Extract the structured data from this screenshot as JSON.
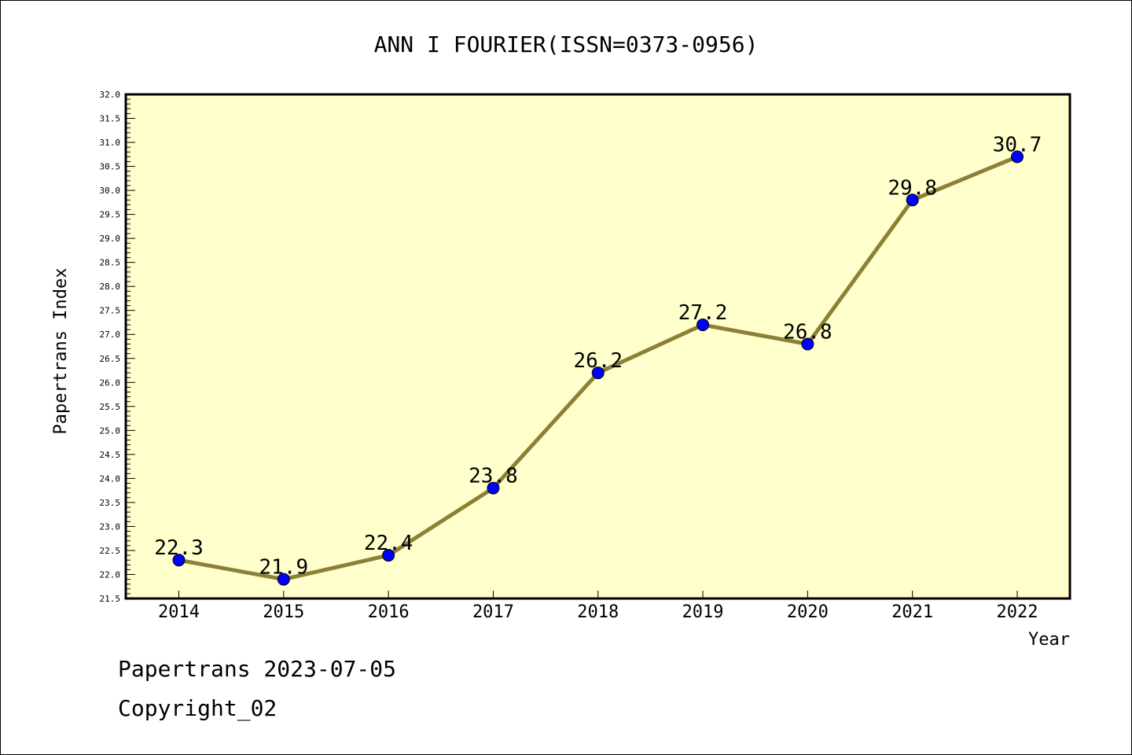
{
  "footer": {
    "line1": "Papertrans 2023-07-05",
    "line2": "Copyright_02"
  },
  "colors": {
    "plot_background": "#ffffcc",
    "line": "#8b8036",
    "marker": "#0000ff"
  },
  "chart_data": {
    "type": "line",
    "title": "ANN I FOURIER(ISSN=0373-0956)",
    "xlabel": "Year",
    "ylabel": "Papertrans Index",
    "categories": [
      "2014",
      "2015",
      "2016",
      "2017",
      "2018",
      "2019",
      "2020",
      "2021",
      "2022"
    ],
    "values": [
      22.3,
      21.9,
      22.4,
      23.8,
      26.2,
      27.2,
      26.8,
      29.8,
      30.7
    ],
    "data_labels": [
      "22.3",
      "21.9",
      "22.4",
      "23.8",
      "26.2",
      "27.2",
      "26.8",
      "29.8",
      "30.7"
    ],
    "ylim": [
      21.5,
      32.0
    ],
    "ytick_labels": [
      "21.5",
      "22.0",
      "22.5",
      "23.0",
      "23.5",
      "24.0",
      "24.5",
      "25.0",
      "25.5",
      "26.0",
      "26.5",
      "27.0",
      "27.5",
      "28.0",
      "28.5",
      "29.0",
      "29.5",
      "30.0",
      "30.5",
      "31.0",
      "31.5",
      "32.0"
    ],
    "grid": false,
    "legend": false
  }
}
